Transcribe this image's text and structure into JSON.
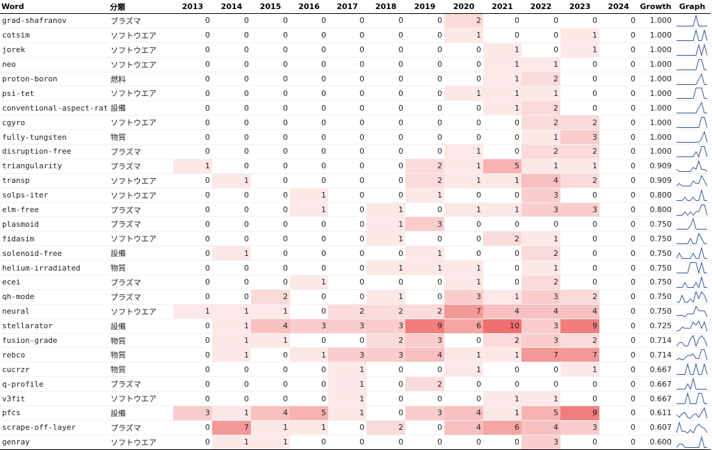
{
  "headers": {
    "word": "Word",
    "category": "分類",
    "years": [
      "2013",
      "2014",
      "2015",
      "2016",
      "2017",
      "2018",
      "2019",
      "2020",
      "2021",
      "2022",
      "2023",
      "2024"
    ],
    "growth": "Growth",
    "graph": "Graph"
  },
  "heat_color": "#f07070",
  "sparkline_color": "#2f5597",
  "rows": [
    {
      "word": "grad-shafranov",
      "category": "プラズマ",
      "values": [
        0,
        0,
        0,
        0,
        0,
        0,
        0,
        2,
        0,
        0,
        0,
        0
      ],
      "growth": "1.000"
    },
    {
      "word": "cotsim",
      "category": "ソフトウエア",
      "values": [
        0,
        0,
        0,
        0,
        0,
        0,
        0,
        1,
        0,
        0,
        1,
        0
      ],
      "growth": "1.000"
    },
    {
      "word": "jorek",
      "category": "ソフトウエア",
      "values": [
        0,
        0,
        0,
        0,
        0,
        0,
        0,
        0,
        1,
        0,
        1,
        0
      ],
      "growth": "1.000"
    },
    {
      "word": "neo",
      "category": "ソフトウエア",
      "values": [
        0,
        0,
        0,
        0,
        0,
        0,
        0,
        0,
        1,
        1,
        0,
        0
      ],
      "growth": "1.000"
    },
    {
      "word": "proton-boron",
      "category": "燃料",
      "values": [
        0,
        0,
        0,
        0,
        0,
        0,
        0,
        0,
        1,
        2,
        0,
        0
      ],
      "growth": "1.000"
    },
    {
      "word": "psi-tet",
      "category": "ソフトウエア",
      "values": [
        0,
        0,
        0,
        0,
        0,
        0,
        0,
        1,
        1,
        1,
        0,
        0
      ],
      "growth": "1.000"
    },
    {
      "word": "conventional-aspect-ratio",
      "category": "設備",
      "values": [
        0,
        0,
        0,
        0,
        0,
        0,
        0,
        0,
        1,
        2,
        0,
        0
      ],
      "growth": "1.000"
    },
    {
      "word": "cgyro",
      "category": "ソフトウエア",
      "values": [
        0,
        0,
        0,
        0,
        0,
        0,
        0,
        0,
        0,
        2,
        2,
        0
      ],
      "growth": "1.000"
    },
    {
      "word": "fully-tungsten",
      "category": "物質",
      "values": [
        0,
        0,
        0,
        0,
        0,
        0,
        0,
        0,
        0,
        1,
        3,
        0
      ],
      "growth": "1.000"
    },
    {
      "word": "disruption-free",
      "category": "プラズマ",
      "values": [
        0,
        0,
        0,
        0,
        0,
        0,
        0,
        1,
        0,
        2,
        2,
        0
      ],
      "growth": "1.000"
    },
    {
      "word": "triangularity",
      "category": "プラズマ",
      "values": [
        1,
        0,
        0,
        0,
        0,
        0,
        2,
        1,
        5,
        1,
        1,
        0
      ],
      "growth": "0.909"
    },
    {
      "word": "transp",
      "category": "ソフトウエア",
      "values": [
        0,
        1,
        0,
        0,
        0,
        0,
        2,
        1,
        1,
        4,
        2,
        0
      ],
      "growth": "0.909"
    },
    {
      "word": "solps-iter",
      "category": "ソフトウエア",
      "values": [
        0,
        0,
        0,
        1,
        0,
        0,
        1,
        0,
        0,
        3,
        0,
        0
      ],
      "growth": "0.800"
    },
    {
      "word": "elm-free",
      "category": "プラズマ",
      "values": [
        0,
        0,
        0,
        1,
        0,
        1,
        0,
        1,
        1,
        3,
        3,
        0
      ],
      "growth": "0.800"
    },
    {
      "word": "plasmoid",
      "category": "プラズマ",
      "values": [
        0,
        0,
        0,
        0,
        0,
        1,
        3,
        0,
        0,
        0,
        0,
        0
      ],
      "growth": "0.750"
    },
    {
      "word": "fidasim",
      "category": "ソフトウエア",
      "values": [
        0,
        0,
        0,
        0,
        0,
        1,
        0,
        0,
        2,
        1,
        0,
        0
      ],
      "growth": "0.750"
    },
    {
      "word": "solenoid-free",
      "category": "設備",
      "values": [
        0,
        1,
        0,
        0,
        0,
        0,
        1,
        0,
        0,
        2,
        0,
        0
      ],
      "growth": "0.750"
    },
    {
      "word": "helium-irradiated",
      "category": "物質",
      "values": [
        0,
        0,
        0,
        0,
        0,
        1,
        1,
        1,
        0,
        1,
        0,
        0
      ],
      "growth": "0.750"
    },
    {
      "word": "ecei",
      "category": "プラズマ",
      "values": [
        0,
        0,
        0,
        1,
        0,
        0,
        0,
        1,
        0,
        2,
        0,
        0
      ],
      "growth": "0.750"
    },
    {
      "word": "qh-mode",
      "category": "プラズマ",
      "values": [
        0,
        0,
        2,
        0,
        0,
        1,
        0,
        3,
        1,
        3,
        2,
        0
      ],
      "growth": "0.750"
    },
    {
      "word": "neural",
      "category": "ソフトウエア",
      "values": [
        1,
        1,
        1,
        0,
        2,
        2,
        2,
        7,
        4,
        4,
        4,
        0
      ],
      "growth": "0.750"
    },
    {
      "word": "stellarator",
      "category": "設備",
      "values": [
        0,
        1,
        4,
        3,
        3,
        3,
        9,
        6,
        10,
        3,
        9,
        0
      ],
      "growth": "0.725"
    },
    {
      "word": "fusion-grade",
      "category": "物質",
      "values": [
        0,
        1,
        1,
        0,
        0,
        2,
        3,
        0,
        2,
        3,
        2,
        0
      ],
      "growth": "0.714"
    },
    {
      "word": "rebco",
      "category": "物質",
      "values": [
        0,
        1,
        0,
        1,
        3,
        3,
        4,
        1,
        1,
        7,
        7,
        0
      ],
      "growth": "0.714"
    },
    {
      "word": "cucrzr",
      "category": "物質",
      "values": [
        0,
        0,
        0,
        0,
        1,
        0,
        0,
        1,
        0,
        0,
        1,
        0
      ],
      "growth": "0.667"
    },
    {
      "word": "q-profile",
      "category": "プラズマ",
      "values": [
        0,
        0,
        0,
        0,
        1,
        0,
        2,
        0,
        0,
        0,
        0,
        0
      ],
      "growth": "0.667"
    },
    {
      "word": "v3fit",
      "category": "ソフトウエア",
      "values": [
        0,
        0,
        0,
        0,
        1,
        0,
        0,
        0,
        1,
        1,
        0,
        0
      ],
      "growth": "0.667"
    },
    {
      "word": "pfcs",
      "category": "設備",
      "values": [
        3,
        1,
        4,
        5,
        1,
        0,
        3,
        4,
        1,
        5,
        9,
        0
      ],
      "growth": "0.611"
    },
    {
      "word": "scrape-off-layer",
      "category": "プラズマ",
      "values": [
        0,
        7,
        1,
        1,
        0,
        2,
        0,
        4,
        6,
        4,
        3,
        0
      ],
      "growth": "0.607"
    },
    {
      "word": "genray",
      "category": "ソフトウエア",
      "values": [
        0,
        1,
        1,
        0,
        0,
        0,
        0,
        0,
        0,
        3,
        0,
        0
      ],
      "growth": "0.600"
    }
  ]
}
